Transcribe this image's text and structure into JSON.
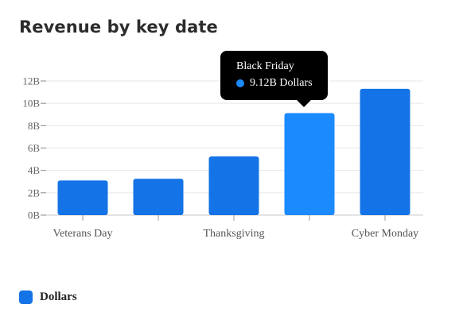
{
  "colors": {
    "bar": "#1473e6",
    "bar_highlight": "#1b8aff"
  },
  "chart_data": {
    "type": "bar",
    "title": "Revenue by key date",
    "categories": [
      "Veterans Day",
      "",
      "Thanksgiving",
      "Black Friday",
      "Cyber Monday"
    ],
    "category_labels_shown": [
      "Veterans Day",
      "",
      "Thanksgiving",
      "",
      "Cyber Monday"
    ],
    "series": [
      {
        "name": "Dollars",
        "values": [
          3.1,
          3.25,
          5.25,
          9.12,
          11.3
        ]
      }
    ],
    "ylim": [
      0,
      12
    ],
    "yticks": [
      0,
      2,
      4,
      6,
      8,
      10,
      12
    ],
    "ytick_labels": [
      "0B",
      "2B",
      "4B",
      "6B",
      "8B",
      "10B",
      "12B"
    ],
    "grid": true,
    "legend_position": "bottom-left",
    "highlighted_index": 3
  },
  "tooltip": {
    "title": "Black Friday",
    "value_text": "9.12B Dollars"
  },
  "legend": {
    "label": "Dollars"
  }
}
